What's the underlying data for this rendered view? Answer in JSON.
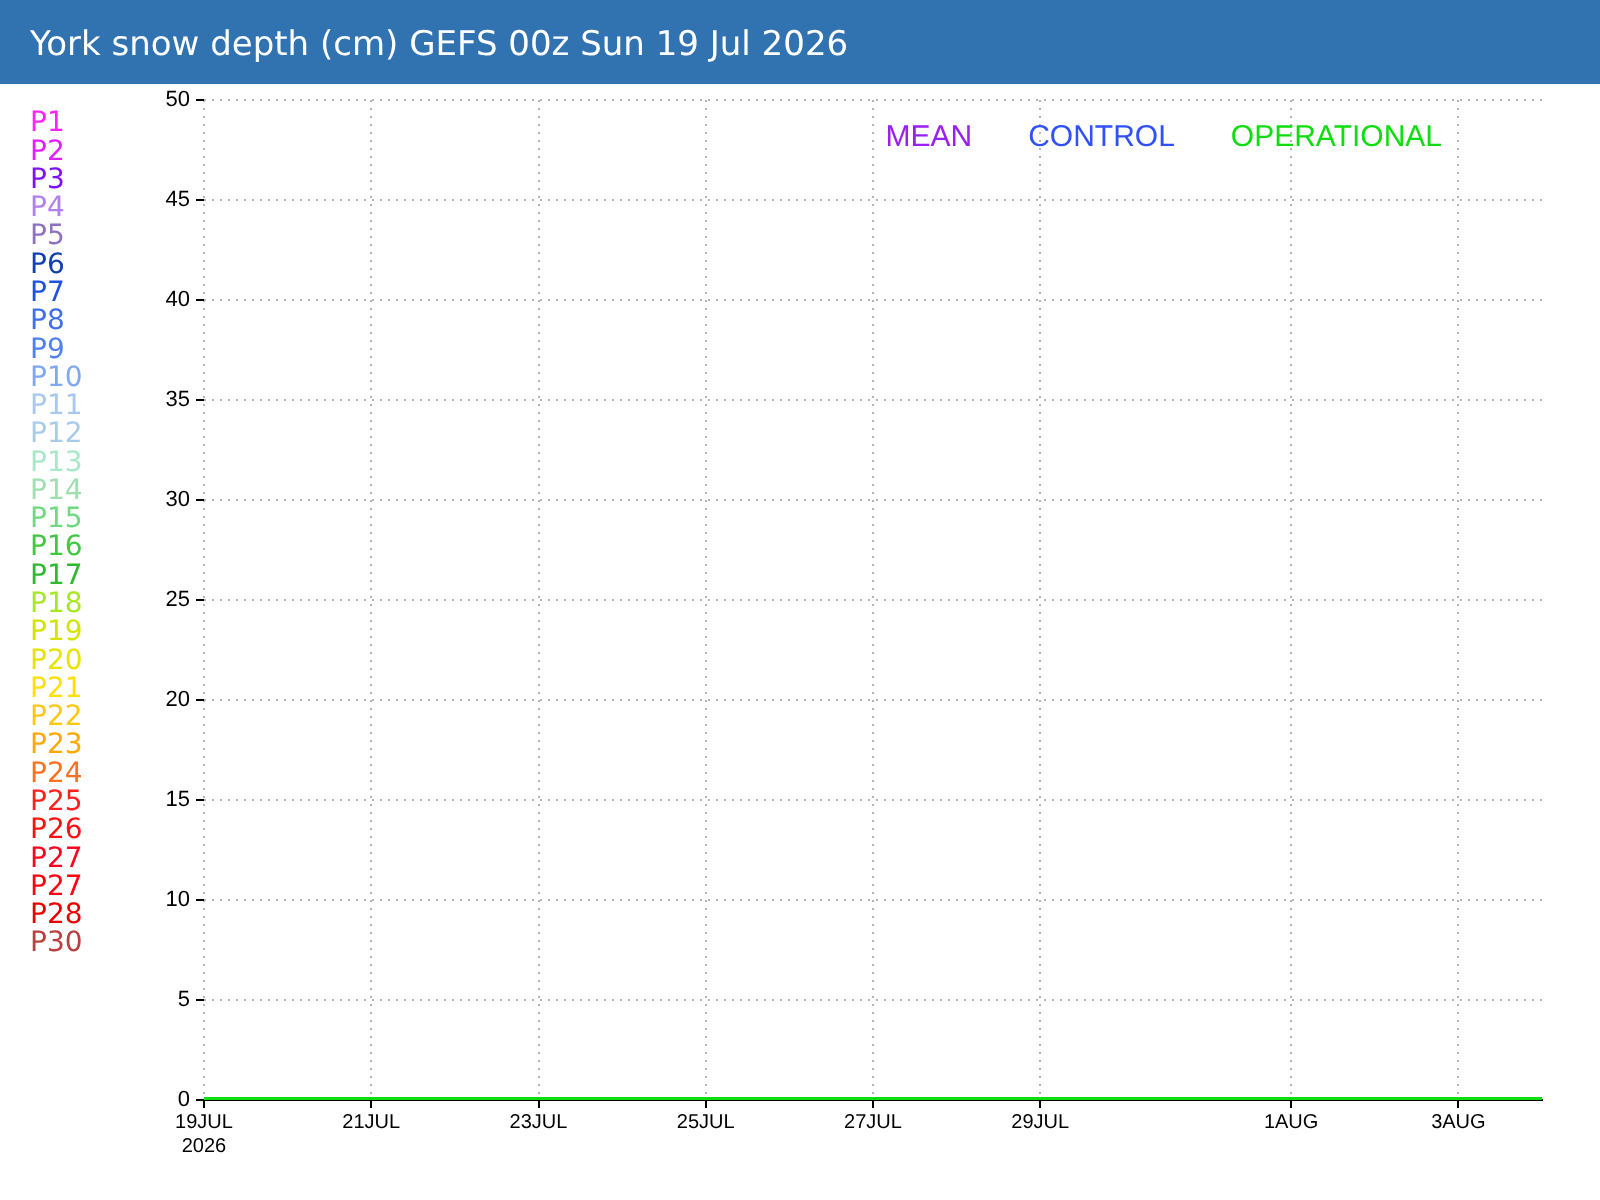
{
  "chart_data": {
    "type": "line",
    "title": "York snow depth (cm) GEFS 00z Sun 19 Jul 2026",
    "x": [
      "2026-07-19",
      "2026-08-04"
    ],
    "series": [
      {
        "name": "P1",
        "color": "#ff22ff",
        "values": [
          null,
          null
        ]
      },
      {
        "name": "P2",
        "color": "#e020ff",
        "values": [
          null,
          null
        ]
      },
      {
        "name": "P3",
        "color": "#8010ff",
        "values": [
          null,
          null
        ]
      },
      {
        "name": "P4",
        "color": "#b080f0",
        "values": [
          null,
          null
        ]
      },
      {
        "name": "P5",
        "color": "#9070c0",
        "values": [
          null,
          null
        ]
      },
      {
        "name": "P6",
        "color": "#1040b0",
        "values": [
          null,
          null
        ]
      },
      {
        "name": "P7",
        "color": "#2050e0",
        "values": [
          null,
          null
        ]
      },
      {
        "name": "P8",
        "color": "#4070e8",
        "values": [
          null,
          null
        ]
      },
      {
        "name": "P9",
        "color": "#5080f0",
        "values": [
          null,
          null
        ]
      },
      {
        "name": "P10",
        "color": "#80a8f0",
        "values": [
          null,
          null
        ]
      },
      {
        "name": "P11",
        "color": "#a8c8f0",
        "values": [
          null,
          null
        ]
      },
      {
        "name": "P12",
        "color": "#a8cce8",
        "values": [
          null,
          null
        ]
      },
      {
        "name": "P13",
        "color": "#a8e8c8",
        "values": [
          null,
          null
        ]
      },
      {
        "name": "P14",
        "color": "#a0e0b0",
        "values": [
          null,
          null
        ]
      },
      {
        "name": "P15",
        "color": "#70d880",
        "values": [
          null,
          null
        ]
      },
      {
        "name": "P16",
        "color": "#40c840",
        "values": [
          null,
          null
        ]
      },
      {
        "name": "P17",
        "color": "#30b830",
        "values": [
          null,
          null
        ]
      },
      {
        "name": "P18",
        "color": "#a8e820",
        "values": [
          null,
          null
        ]
      },
      {
        "name": "P19",
        "color": "#d4e400",
        "values": [
          null,
          null
        ]
      },
      {
        "name": "P20",
        "color": "#e8e400",
        "values": [
          null,
          null
        ]
      },
      {
        "name": "P21",
        "color": "#ffe000",
        "values": [
          null,
          null
        ]
      },
      {
        "name": "P22",
        "color": "#ffc810",
        "values": [
          null,
          null
        ]
      },
      {
        "name": "P23",
        "color": "#ffa800",
        "values": [
          null,
          null
        ]
      },
      {
        "name": "P24",
        "color": "#ff7020",
        "values": [
          null,
          null
        ]
      },
      {
        "name": "P25",
        "color": "#ff2020",
        "values": [
          null,
          null
        ]
      },
      {
        "name": "P26",
        "color": "#ff1010",
        "values": [
          null,
          null
        ]
      },
      {
        "name": "P27",
        "color": "#ff0020",
        "values": [
          null,
          null
        ]
      },
      {
        "name": "P27",
        "color": "#ff0010",
        "values": [
          null,
          null
        ]
      },
      {
        "name": "P28",
        "color": "#e80000",
        "values": [
          null,
          null
        ]
      },
      {
        "name": "P30",
        "color": "#b84040",
        "values": [
          null,
          null
        ]
      },
      {
        "name": "MEAN",
        "color": "#9a20f0",
        "values": [
          null,
          null
        ]
      },
      {
        "name": "CONTROL",
        "color": "#3050ff",
        "values": [
          null,
          null
        ]
      },
      {
        "name": "OPERATIONAL",
        "color": "#10dd10",
        "values": [
          0,
          0
        ]
      }
    ],
    "xlim": [
      "2026-07-19",
      "2026-08-04"
    ],
    "xticks": [
      {
        "value": "2026-07-19",
        "label": "19JUL\n2026"
      },
      {
        "value": "2026-07-21",
        "label": "21JUL"
      },
      {
        "value": "2026-07-23",
        "label": "23JUL"
      },
      {
        "value": "2026-07-25",
        "label": "25JUL"
      },
      {
        "value": "2026-07-27",
        "label": "27JUL"
      },
      {
        "value": "2026-07-29",
        "label": "29JUL"
      },
      {
        "value": "2026-08-01",
        "label": "1AUG"
      },
      {
        "value": "2026-08-03",
        "label": "3AUG"
      }
    ],
    "ylim": [
      0,
      50
    ],
    "yticks": [
      0,
      5,
      10,
      15,
      20,
      25,
      30,
      35,
      40,
      45,
      50
    ],
    "grid": true,
    "legend": "top right"
  }
}
